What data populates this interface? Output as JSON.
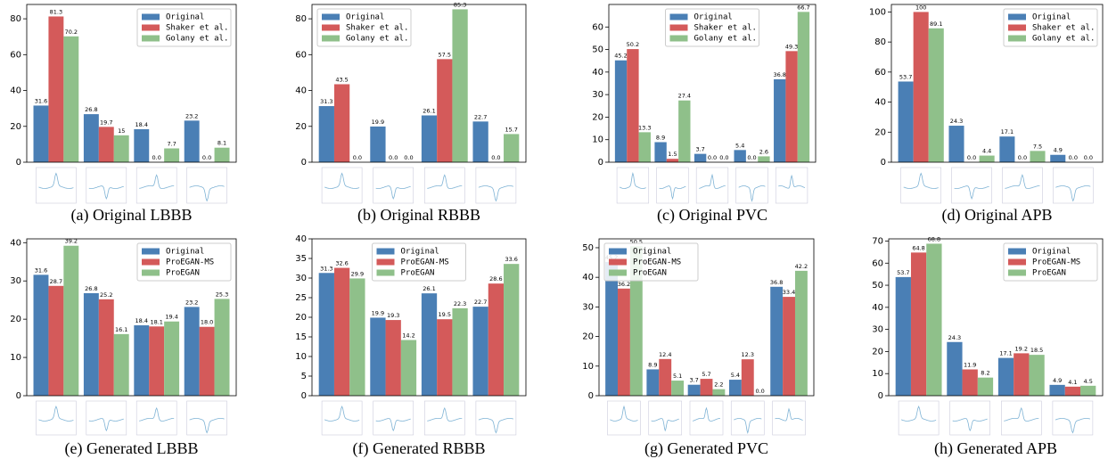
{
  "chart_data": [
    {
      "type": "bar",
      "caption": "(a) Original LBBB",
      "categories": [
        null,
        null,
        null,
        null
      ],
      "ylim": [
        0,
        88
      ],
      "yticks": [
        0,
        20,
        40,
        60,
        80
      ],
      "legend": "upper right",
      "series": [
        {
          "name": "Original",
          "color": "#4a7fb5",
          "values": [
            31.6,
            26.8,
            18.4,
            23.2
          ]
        },
        {
          "name": "Shaker et al.",
          "color": "#d45a5a",
          "values": [
            81.3,
            19.7,
            0.0,
            0.0
          ],
          "value_labels": [
            "81.3",
            "19.7",
            "0.0",
            "0.0"
          ]
        },
        {
          "name": "Golany et al.",
          "color": "#8fc08a",
          "values": [
            70.2,
            15,
            7.7,
            8.1
          ]
        }
      ]
    },
    {
      "type": "bar",
      "caption": "(b) Original RBBB",
      "categories": [
        null,
        null,
        null,
        null
      ],
      "ylim": [
        0,
        88
      ],
      "yticks": [
        0,
        20,
        40,
        60,
        80
      ],
      "legend": "upper left",
      "series": [
        {
          "name": "Original",
          "color": "#4a7fb5",
          "values": [
            31.3,
            19.9,
            26.1,
            22.7
          ]
        },
        {
          "name": "Shaker et al.",
          "color": "#d45a5a",
          "values": [
            43.5,
            0.0,
            57.5,
            0.0
          ],
          "value_labels": [
            "43.5",
            "0.0",
            "57.5",
            "0.0"
          ]
        },
        {
          "name": "Golany et al.",
          "color": "#8fc08a",
          "values": [
            0.0,
            0.0,
            85.3,
            15.7
          ],
          "value_labels": [
            "0.0",
            "0.0",
            "85.3",
            "15.7"
          ]
        }
      ]
    },
    {
      "type": "bar",
      "caption": "(c) Original PVC",
      "categories": [
        null,
        null,
        null,
        null,
        null
      ],
      "ylim": [
        0,
        70
      ],
      "yticks": [
        0,
        10,
        20,
        30,
        40,
        50,
        60
      ],
      "legend": "upper center",
      "series": [
        {
          "name": "Original",
          "color": "#4a7fb5",
          "values": [
            45.2,
            8.9,
            3.7,
            5.4,
            36.8
          ]
        },
        {
          "name": "Shaker et al.",
          "color": "#d45a5a",
          "values": [
            50.2,
            1.5,
            0.0,
            0.0,
            49.3
          ],
          "value_labels": [
            "50.2",
            "1.5",
            "0.0",
            "0.0",
            "49.3"
          ]
        },
        {
          "name": "Golany et al.",
          "color": "#8fc08a",
          "values": [
            13.3,
            27.4,
            0.0,
            2.6,
            66.7
          ],
          "value_labels": [
            "13.3",
            "27.4",
            "0.0",
            "2.6",
            "66.7"
          ]
        }
      ]
    },
    {
      "type": "bar",
      "caption": "(d) Original APB",
      "categories": [
        null,
        null,
        null,
        null
      ],
      "ylim": [
        0,
        105
      ],
      "yticks": [
        0,
        20,
        40,
        60,
        80,
        100
      ],
      "legend": "upper right",
      "series": [
        {
          "name": "Original",
          "color": "#4a7fb5",
          "values": [
            53.7,
            24.3,
            17.1,
            4.9
          ]
        },
        {
          "name": "Shaker et al.",
          "color": "#d45a5a",
          "values": [
            100,
            0.0,
            0.0,
            0.0
          ],
          "value_labels": [
            "100",
            "0.0",
            "0.0",
            "0.0"
          ]
        },
        {
          "name": "Golany et al.",
          "color": "#8fc08a",
          "values": [
            89.1,
            4.4,
            7.5,
            0.0
          ],
          "value_labels": [
            "89.1",
            "4.4",
            "7.5",
            "0.0"
          ]
        }
      ]
    },
    {
      "type": "bar",
      "caption": "(e) Generated LBBB",
      "categories": [
        null,
        null,
        null,
        null
      ],
      "ylim": [
        0,
        41
      ],
      "yticks": [
        0,
        10,
        20,
        30,
        40
      ],
      "legend": "upper right",
      "series": [
        {
          "name": "Original",
          "color": "#4a7fb5",
          "values": [
            31.6,
            26.8,
            18.4,
            23.2
          ]
        },
        {
          "name": "ProEGAN-MS",
          "color": "#d45a5a",
          "values": [
            28.7,
            25.2,
            18.1,
            18.0
          ],
          "value_labels": [
            "28.7",
            "25.2",
            "18.1",
            "18.0"
          ]
        },
        {
          "name": "ProEGAN",
          "color": "#8fc08a",
          "values": [
            39.2,
            16.1,
            19.4,
            25.3
          ]
        }
      ]
    },
    {
      "type": "bar",
      "caption": "(f) Generated RBBB",
      "categories": [
        null,
        null,
        null,
        null
      ],
      "ylim": [
        0,
        40
      ],
      "yticks": [
        0,
        5,
        10,
        15,
        20,
        25,
        30,
        35,
        40
      ],
      "legend": "upper center",
      "series": [
        {
          "name": "Original",
          "color": "#4a7fb5",
          "values": [
            31.3,
            19.9,
            26.1,
            22.7
          ]
        },
        {
          "name": "ProEGAN-MS",
          "color": "#d45a5a",
          "values": [
            32.6,
            19.3,
            19.5,
            28.6
          ]
        },
        {
          "name": "ProEGAN",
          "color": "#8fc08a",
          "values": [
            29.9,
            14.2,
            22.3,
            33.6
          ]
        }
      ]
    },
    {
      "type": "bar",
      "caption": "(g) Generated PVC",
      "categories": [
        null,
        null,
        null,
        null,
        null
      ],
      "ylim": [
        0,
        53
      ],
      "yticks": [
        0,
        10,
        20,
        30,
        40,
        50
      ],
      "legend": "upper left",
      "series": [
        {
          "name": "Original",
          "color": "#4a7fb5",
          "values": [
            45.2,
            8.9,
            3.7,
            5.4,
            36.8
          ]
        },
        {
          "name": "ProEGAN-MS",
          "color": "#d45a5a",
          "values": [
            36.2,
            12.4,
            5.7,
            12.3,
            33.4
          ]
        },
        {
          "name": "ProEGAN",
          "color": "#8fc08a",
          "values": [
            50.5,
            5.1,
            2.2,
            0.0,
            42.2
          ],
          "value_labels": [
            "50.5",
            "5.1",
            "2.2",
            "0.0",
            "42.2"
          ]
        }
      ]
    },
    {
      "type": "bar",
      "caption": "(h) Generated APB",
      "categories": [
        null,
        null,
        null,
        null
      ],
      "ylim": [
        0,
        71
      ],
      "yticks": [
        0,
        10,
        20,
        30,
        40,
        50,
        60,
        70
      ],
      "legend": "upper right",
      "series": [
        {
          "name": "Original",
          "color": "#4a7fb5",
          "values": [
            53.7,
            24.3,
            17.1,
            4.9
          ]
        },
        {
          "name": "ProEGAN-MS",
          "color": "#d45a5a",
          "values": [
            64.8,
            11.9,
            19.2,
            4.1
          ]
        },
        {
          "name": "ProEGAN",
          "color": "#8fc08a",
          "values": [
            68.8,
            8.2,
            18.5,
            4.5
          ]
        }
      ]
    }
  ]
}
